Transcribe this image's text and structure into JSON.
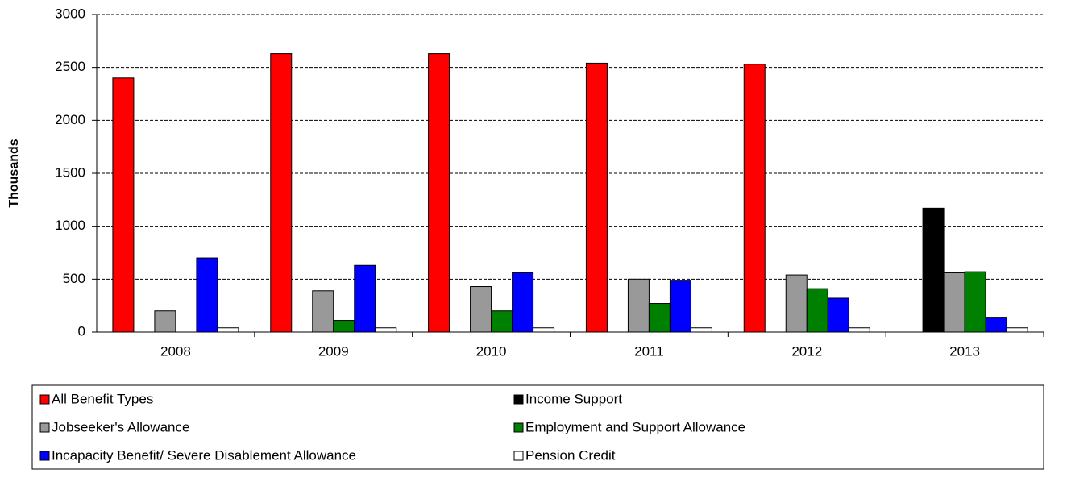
{
  "chart_data": {
    "type": "bar",
    "y_label": "Thousands",
    "categories": [
      "2008",
      "2009",
      "2010",
      "2011",
      "2012",
      "2013"
    ],
    "series": [
      {
        "name": "All Benefit Types",
        "color": "#ff0000",
        "values": [
          2400,
          2630,
          2630,
          2540,
          2530,
          null
        ]
      },
      {
        "name": "Income Support",
        "color": "#000000",
        "values": [
          null,
          null,
          null,
          null,
          null,
          1170
        ]
      },
      {
        "name": "Jobseeker's Allowance",
        "color": "#999999",
        "values": [
          200,
          390,
          430,
          500,
          540,
          560
        ]
      },
      {
        "name": "Employment and Support Allowance",
        "color": "#008000",
        "values": [
          null,
          110,
          200,
          270,
          410,
          570
        ]
      },
      {
        "name": "Incapacity Benefit/ Severe Disablement Allowance",
        "color": "#0000ff",
        "values": [
          700,
          630,
          560,
          490,
          320,
          140
        ]
      },
      {
        "name": "Pension Credit",
        "color": "#ffffff",
        "values": [
          40,
          40,
          40,
          40,
          40,
          40
        ]
      }
    ],
    "ylim": [
      0,
      3000
    ],
    "yticks": [
      0,
      500,
      1000,
      1500,
      2000,
      2500,
      3000
    ],
    "grid": true
  }
}
